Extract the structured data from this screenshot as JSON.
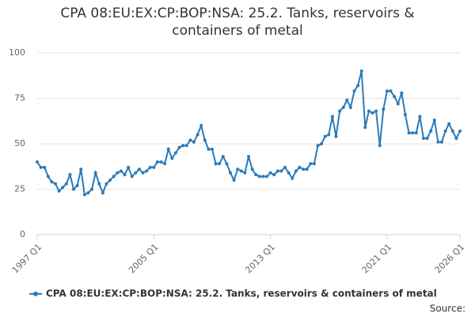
{
  "chart_data": {
    "type": "line",
    "title": "CPA 08:EU:EX:CP:BOP:NSA: 25.2. Tanks, reservoirs & containers of metal",
    "source": "Source:",
    "categories": [
      "1997 Q1",
      null,
      null,
      null,
      null,
      null,
      null,
      null,
      null,
      null,
      null,
      null,
      null,
      null,
      null,
      null,
      null,
      null,
      null,
      null,
      null,
      null,
      null,
      null,
      null,
      null,
      null,
      null,
      null,
      null,
      null,
      null,
      "2005 Q1",
      null,
      null,
      null,
      null,
      null,
      null,
      null,
      null,
      null,
      null,
      null,
      null,
      null,
      null,
      null,
      null,
      null,
      null,
      null,
      null,
      null,
      null,
      null,
      null,
      null,
      null,
      null,
      null,
      null,
      null,
      null,
      "2013 Q1",
      null,
      null,
      null,
      null,
      null,
      null,
      null,
      null,
      null,
      null,
      null,
      null,
      null,
      null,
      null,
      null,
      null,
      null,
      null,
      null,
      null,
      null,
      null,
      null,
      null,
      null,
      null,
      null,
      null,
      null,
      null,
      "2021 Q1",
      null,
      null,
      null,
      null,
      null,
      null,
      null,
      null,
      null,
      null,
      null,
      null,
      null,
      null,
      null,
      null,
      null,
      null,
      null,
      "2026 Q1"
    ],
    "series": [
      {
        "name": "CPA 08:EU:EX:CP:BOP:NSA: 25.2. Tanks, reservoirs & containers of metal",
        "color": "#2b7bb9",
        "values": [
          40,
          37,
          37,
          32,
          29,
          28,
          24,
          26,
          28,
          33,
          25,
          27,
          36,
          22,
          23,
          25,
          34,
          28,
          23,
          28,
          30,
          32,
          34,
          35,
          33,
          37,
          32,
          34,
          36,
          34,
          35,
          37,
          37,
          40,
          40,
          39,
          47,
          42,
          45,
          48,
          49,
          49,
          52,
          51,
          55,
          60,
          52,
          47,
          47,
          39,
          39,
          43,
          39,
          34,
          30,
          36,
          35,
          34,
          43,
          36,
          33,
          32,
          32,
          32,
          34,
          33,
          35,
          35,
          37,
          34,
          31,
          35,
          37,
          36,
          36,
          39,
          39,
          49,
          50,
          54,
          55,
          65,
          54,
          68,
          70,
          74,
          70,
          79,
          82,
          90,
          59,
          68,
          67,
          68,
          49,
          69,
          79,
          79,
          76,
          72,
          78,
          66,
          56,
          56,
          56,
          65,
          53,
          53,
          57,
          63,
          51,
          51,
          57,
          61,
          57,
          53,
          57
        ]
      }
    ],
    "ylim": [
      0,
      100
    ],
    "yticks": [
      0,
      25,
      50,
      75,
      100
    ],
    "grid": true
  }
}
